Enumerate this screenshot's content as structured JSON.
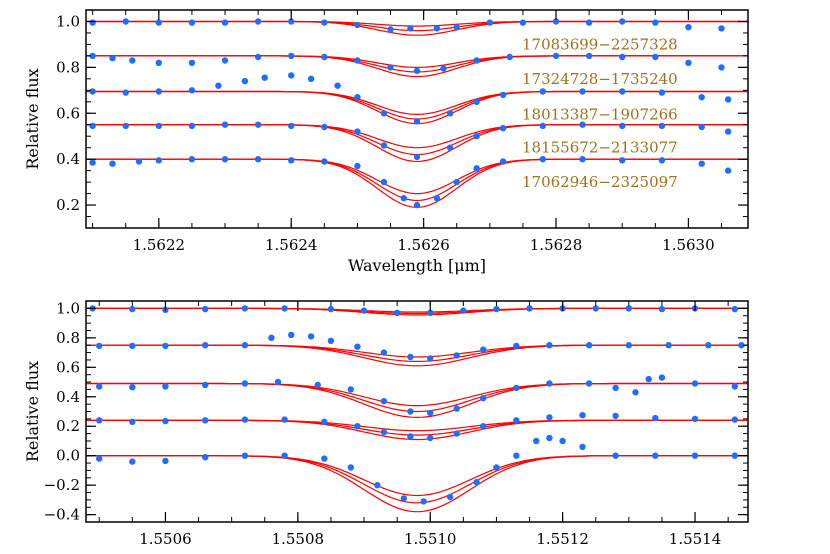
{
  "colors": {
    "model": "#ff0000",
    "observed": "#1e6fff",
    "label": "#a0701e",
    "axis": "#000000"
  },
  "chart_data": [
    {
      "type": "line",
      "title": "",
      "xlabel": "Wavelength [μm]",
      "ylabel": "Relative flux",
      "xlim": [
        1.56209,
        1.56309
      ],
      "ylim": [
        0.1,
        1.05
      ],
      "xticks": [
        1.5622,
        1.5624,
        1.5626,
        1.5628,
        1.563
      ],
      "xtick_labels": [
        "1.5622",
        "1.5624",
        "1.5626",
        "1.5628",
        "1.5630"
      ],
      "yticks": [
        0.2,
        0.4,
        0.6,
        0.8,
        1.0
      ],
      "ytick_labels": [
        "0.2",
        "0.4",
        "0.6",
        "0.8",
        "1.0"
      ],
      "grid": false,
      "line_center": 1.56259,
      "line_sigma": 6e-05,
      "series": [
        {
          "name": "17083699−2257328",
          "continuum": 1.0,
          "model_depths": [
            0.02,
            0.04,
            0.06
          ],
          "observed": [
            [
              1.5621,
              0.995
            ],
            [
              1.56215,
              1.0
            ],
            [
              1.5622,
              0.995
            ],
            [
              1.56225,
              0.995
            ],
            [
              1.5623,
              0.995
            ],
            [
              1.56235,
              1.0
            ],
            [
              1.5624,
              1.0
            ],
            [
              1.56245,
              0.995
            ],
            [
              1.5625,
              0.985
            ],
            [
              1.56255,
              0.965
            ],
            [
              1.56258,
              0.97
            ],
            [
              1.56262,
              0.97
            ],
            [
              1.56265,
              0.975
            ],
            [
              1.5627,
              0.995
            ],
            [
              1.56275,
              0.995
            ],
            [
              1.5628,
              1.0
            ],
            [
              1.56285,
              0.995
            ],
            [
              1.5629,
              1.0
            ],
            [
              1.56295,
              0.995
            ],
            [
              1.563,
              0.975
            ],
            [
              1.56305,
              0.97
            ]
          ]
        },
        {
          "name": "17324728−1735240",
          "continuum": 0.85,
          "model_depths": [
            0.05,
            0.07,
            0.09
          ],
          "observed": [
            [
              1.5621,
              0.85
            ],
            [
              1.56213,
              0.84
            ],
            [
              1.56216,
              0.83
            ],
            [
              1.5622,
              0.82
            ],
            [
              1.56225,
              0.82
            ],
            [
              1.5623,
              0.83
            ],
            [
              1.56235,
              0.845
            ],
            [
              1.5624,
              0.85
            ],
            [
              1.56245,
              0.845
            ],
            [
              1.5625,
              0.83
            ],
            [
              1.56255,
              0.8
            ],
            [
              1.56259,
              0.785
            ],
            [
              1.56263,
              0.795
            ],
            [
              1.56268,
              0.83
            ],
            [
              1.56273,
              0.845
            ],
            [
              1.5628,
              0.85
            ],
            [
              1.56285,
              0.85
            ],
            [
              1.5629,
              0.845
            ],
            [
              1.56295,
              0.845
            ],
            [
              1.563,
              0.82
            ],
            [
              1.56305,
              0.8
            ]
          ]
        },
        {
          "name": "18013387−1907266",
          "continuum": 0.695,
          "model_depths": [
            0.1,
            0.12,
            0.14
          ],
          "observed": [
            [
              1.5621,
              0.695
            ],
            [
              1.56215,
              0.69
            ],
            [
              1.5622,
              0.695
            ],
            [
              1.56225,
              0.7
            ],
            [
              1.56229,
              0.72
            ],
            [
              1.56233,
              0.74
            ],
            [
              1.56236,
              0.755
            ],
            [
              1.5624,
              0.765
            ],
            [
              1.56243,
              0.75
            ],
            [
              1.56247,
              0.72
            ],
            [
              1.5625,
              0.67
            ],
            [
              1.56254,
              0.6
            ],
            [
              1.56259,
              0.565
            ],
            [
              1.56264,
              0.6
            ],
            [
              1.56268,
              0.65
            ],
            [
              1.56272,
              0.68
            ],
            [
              1.56278,
              0.695
            ],
            [
              1.56284,
              0.695
            ],
            [
              1.5629,
              0.695
            ],
            [
              1.56296,
              0.69
            ],
            [
              1.56302,
              0.67
            ],
            [
              1.56306,
              0.66
            ]
          ]
        },
        {
          "name": "18155672−2133077",
          "continuum": 0.55,
          "model_depths": [
            0.1,
            0.13,
            0.16
          ],
          "observed": [
            [
              1.5621,
              0.545
            ],
            [
              1.56215,
              0.545
            ],
            [
              1.5622,
              0.545
            ],
            [
              1.56225,
              0.545
            ],
            [
              1.5623,
              0.55
            ],
            [
              1.56235,
              0.55
            ],
            [
              1.5624,
              0.545
            ],
            [
              1.56245,
              0.54
            ],
            [
              1.5625,
              0.52
            ],
            [
              1.56254,
              0.46
            ],
            [
              1.56259,
              0.41
            ],
            [
              1.56264,
              0.45
            ],
            [
              1.56268,
              0.5
            ],
            [
              1.56272,
              0.535
            ],
            [
              1.56278,
              0.545
            ],
            [
              1.56284,
              0.55
            ],
            [
              1.5629,
              0.545
            ],
            [
              1.56296,
              0.545
            ],
            [
              1.56302,
              0.54
            ],
            [
              1.56306,
              0.52
            ]
          ]
        },
        {
          "name": "17062946−2325097",
          "continuum": 0.4,
          "model_depths": [
            0.15,
            0.18,
            0.21
          ],
          "observed": [
            [
              1.5621,
              0.385
            ],
            [
              1.56213,
              0.38
            ],
            [
              1.56217,
              0.39
            ],
            [
              1.5622,
              0.395
            ],
            [
              1.56225,
              0.4
            ],
            [
              1.5623,
              0.4
            ],
            [
              1.56235,
              0.4
            ],
            [
              1.5624,
              0.395
            ],
            [
              1.56245,
              0.39
            ],
            [
              1.5625,
              0.37
            ],
            [
              1.56254,
              0.3
            ],
            [
              1.56257,
              0.23
            ],
            [
              1.56259,
              0.2
            ],
            [
              1.56262,
              0.23
            ],
            [
              1.56265,
              0.3
            ],
            [
              1.56268,
              0.36
            ],
            [
              1.56272,
              0.39
            ],
            [
              1.56278,
              0.4
            ],
            [
              1.56284,
              0.4
            ],
            [
              1.5629,
              0.395
            ],
            [
              1.56296,
              0.395
            ],
            [
              1.56302,
              0.38
            ],
            [
              1.56306,
              0.35
            ]
          ]
        }
      ]
    },
    {
      "type": "line",
      "title": "",
      "xlabel": "",
      "ylabel": "Relative flux",
      "xlim": [
        1.55048,
        1.55148
      ],
      "ylim": [
        -0.45,
        1.05
      ],
      "xticks": [
        1.5506,
        1.5508,
        1.551,
        1.5512,
        1.5514
      ],
      "xtick_labels": [
        "1.5506",
        "1.5508",
        "1.5510",
        "1.5512",
        "1.5514"
      ],
      "yticks": [
        -0.4,
        -0.2,
        0.0,
        0.2,
        0.4,
        0.6,
        0.8,
        1.0
      ],
      "ytick_labels": [
        "−0.4",
        "−0.2",
        "0.0",
        "0.2",
        "0.4",
        "0.6",
        "0.8",
        "1.0"
      ],
      "grid": false,
      "line_center": 1.55098,
      "line_sigma": 8e-05,
      "series": [
        {
          "continuum": 1.0,
          "model_depths": [
            0.025,
            0.035,
            0.045
          ],
          "observed": [
            [
              1.55049,
              1.0
            ],
            [
              1.55055,
              0.995
            ],
            [
              1.5506,
              0.99
            ],
            [
              1.55066,
              0.995
            ],
            [
              1.55072,
              1.0
            ],
            [
              1.55078,
              1.0
            ],
            [
              1.55085,
              0.995
            ],
            [
              1.5509,
              0.985
            ],
            [
              1.55095,
              0.97
            ],
            [
              1.551,
              0.97
            ],
            [
              1.55105,
              0.985
            ],
            [
              1.5511,
              0.995
            ],
            [
              1.55115,
              1.0
            ],
            [
              1.5512,
              1.0
            ],
            [
              1.55125,
              1.0
            ],
            [
              1.5513,
              1.0
            ],
            [
              1.55135,
              0.995
            ],
            [
              1.5514,
              1.0
            ],
            [
              1.55146,
              0.995
            ]
          ]
        },
        {
          "continuum": 0.75,
          "model_depths": [
            0.08,
            0.11,
            0.14
          ],
          "observed": [
            [
              1.5505,
              0.745
            ],
            [
              1.55055,
              0.745
            ],
            [
              1.5506,
              0.745
            ],
            [
              1.55066,
              0.75
            ],
            [
              1.55072,
              0.75
            ],
            [
              1.55076,
              0.8
            ],
            [
              1.55079,
              0.82
            ],
            [
              1.55082,
              0.81
            ],
            [
              1.55085,
              0.78
            ],
            [
              1.55089,
              0.74
            ],
            [
              1.55093,
              0.7
            ],
            [
              1.55097,
              0.67
            ],
            [
              1.551,
              0.66
            ],
            [
              1.55104,
              0.68
            ],
            [
              1.55108,
              0.72
            ],
            [
              1.55113,
              0.745
            ],
            [
              1.55118,
              0.75
            ],
            [
              1.55124,
              0.75
            ],
            [
              1.5513,
              0.75
            ],
            [
              1.55136,
              0.75
            ],
            [
              1.55142,
              0.75
            ],
            [
              1.55147,
              0.75
            ]
          ]
        },
        {
          "continuum": 0.49,
          "model_depths": [
            0.15,
            0.19,
            0.23
          ],
          "observed": [
            [
              1.5505,
              0.47
            ],
            [
              1.55055,
              0.465
            ],
            [
              1.5506,
              0.47
            ],
            [
              1.55066,
              0.48
            ],
            [
              1.55072,
              0.49
            ],
            [
              1.55077,
              0.5
            ],
            [
              1.55083,
              0.48
            ],
            [
              1.55088,
              0.45
            ],
            [
              1.55093,
              0.37
            ],
            [
              1.55097,
              0.3
            ],
            [
              1.551,
              0.29
            ],
            [
              1.55104,
              0.32
            ],
            [
              1.55108,
              0.39
            ],
            [
              1.55113,
              0.46
            ],
            [
              1.55118,
              0.49
            ],
            [
              1.55124,
              0.49
            ],
            [
              1.55128,
              0.46
            ],
            [
              1.55131,
              0.43
            ],
            [
              1.55133,
              0.52
            ],
            [
              1.55135,
              0.53
            ],
            [
              1.5514,
              0.49
            ],
            [
              1.55146,
              0.47
            ]
          ]
        },
        {
          "continuum": 0.24,
          "model_depths": [
            0.07,
            0.1,
            0.13
          ],
          "observed": [
            [
              1.5505,
              0.24
            ],
            [
              1.55055,
              0.23
            ],
            [
              1.5506,
              0.235
            ],
            [
              1.55066,
              0.24
            ],
            [
              1.55072,
              0.245
            ],
            [
              1.55078,
              0.245
            ],
            [
              1.55084,
              0.23
            ],
            [
              1.55089,
              0.2
            ],
            [
              1.55093,
              0.16
            ],
            [
              1.55097,
              0.13
            ],
            [
              1.551,
              0.12
            ],
            [
              1.55104,
              0.15
            ],
            [
              1.55108,
              0.2
            ],
            [
              1.55113,
              0.24
            ],
            [
              1.55118,
              0.26
            ],
            [
              1.55123,
              0.275
            ],
            [
              1.55128,
              0.27
            ],
            [
              1.55134,
              0.255
            ],
            [
              1.5514,
              0.25
            ],
            [
              1.55146,
              0.245
            ]
          ]
        },
        {
          "continuum": 0.0,
          "model_depths": [
            0.27,
            0.32,
            0.38
          ],
          "observed": [
            [
              1.5505,
              -0.02
            ],
            [
              1.55055,
              -0.04
            ],
            [
              1.5506,
              -0.035
            ],
            [
              1.55066,
              -0.01
            ],
            [
              1.55072,
              0.0
            ],
            [
              1.55078,
              0.0
            ],
            [
              1.55084,
              -0.02
            ],
            [
              1.55088,
              -0.08
            ],
            [
              1.55092,
              -0.2
            ],
            [
              1.55096,
              -0.29
            ],
            [
              1.55099,
              -0.31
            ],
            [
              1.55103,
              -0.28
            ],
            [
              1.55107,
              -0.18
            ],
            [
              1.5511,
              -0.08
            ],
            [
              1.55113,
              0.0
            ],
            [
              1.55116,
              0.1
            ],
            [
              1.55118,
              0.12
            ],
            [
              1.5512,
              0.1
            ],
            [
              1.55123,
              0.06
            ],
            [
              1.55128,
              0.0
            ],
            [
              1.55134,
              0.0
            ],
            [
              1.5514,
              0.0
            ],
            [
              1.55146,
              0.0
            ]
          ]
        }
      ]
    }
  ]
}
